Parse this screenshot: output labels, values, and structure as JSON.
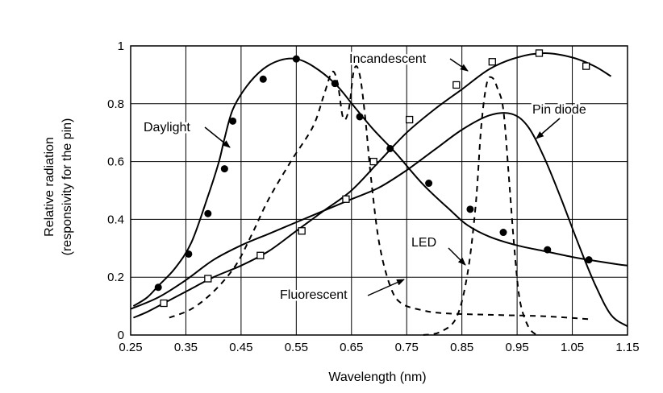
{
  "chart_data": {
    "type": "line",
    "xlabel": "Wavelength (nm)",
    "ylabel_line1": "Relative radiation",
    "ylabel_line2": "(responsivity for the pin)",
    "xlim": [
      0.25,
      1.15
    ],
    "ylim": [
      0,
      1
    ],
    "x_ticks": [
      "0.25",
      "0.35",
      "0.45",
      "0.55",
      "0.65",
      "0.75",
      "0.85",
      "0.95",
      "1.05",
      "1.15"
    ],
    "y_ticks": [
      "0",
      "0.2",
      "0.4",
      "0.6",
      "0.8",
      "1"
    ],
    "grid": true,
    "series": [
      {
        "name": "Daylight",
        "style": "solid",
        "marker": "filled-circle",
        "x": [
          0.255,
          0.28,
          0.3,
          0.33,
          0.36,
          0.39,
          0.41,
          0.42,
          0.435,
          0.46,
          0.49,
          0.52,
          0.55,
          0.58,
          0.62,
          0.655,
          0.69,
          0.73,
          0.78,
          0.83,
          0.86,
          0.9,
          0.95,
          1.0,
          1.05,
          1.08,
          1.13,
          1.15
        ],
        "y": [
          0.1,
          0.13,
          0.17,
          0.23,
          0.32,
          0.48,
          0.6,
          0.68,
          0.78,
          0.86,
          0.92,
          0.95,
          0.955,
          0.93,
          0.87,
          0.79,
          0.71,
          0.63,
          0.52,
          0.43,
          0.38,
          0.34,
          0.31,
          0.29,
          0.27,
          0.26,
          0.245,
          0.24
        ]
      },
      {
        "name": "Incandescent",
        "style": "solid",
        "marker": "open-square",
        "x": [
          0.255,
          0.28,
          0.31,
          0.35,
          0.4,
          0.45,
          0.5,
          0.55,
          0.6,
          0.65,
          0.7,
          0.75,
          0.8,
          0.85,
          0.9,
          0.95,
          1.0,
          1.05,
          1.09,
          1.12
        ],
        "y": [
          0.06,
          0.08,
          0.11,
          0.15,
          0.2,
          0.24,
          0.29,
          0.36,
          0.43,
          0.5,
          0.6,
          0.7,
          0.78,
          0.85,
          0.92,
          0.96,
          0.975,
          0.96,
          0.93,
          0.895
        ],
        "marker_x": [
          0.31,
          0.39,
          0.485,
          0.56,
          0.64,
          0.69,
          0.755,
          0.84,
          0.905,
          0.99,
          1.075
        ],
        "marker_y": [
          0.11,
          0.195,
          0.275,
          0.36,
          0.47,
          0.6,
          0.745,
          0.865,
          0.945,
          0.975,
          0.93
        ]
      },
      {
        "name": "Fluorescent",
        "style": "dashed",
        "marker": "none",
        "x": [
          0.32,
          0.36,
          0.4,
          0.44,
          0.47,
          0.5,
          0.54,
          0.58,
          0.6,
          0.615,
          0.625,
          0.635,
          0.645,
          0.655,
          0.665,
          0.675,
          0.685,
          0.7,
          0.72,
          0.74,
          0.78,
          0.82,
          0.9,
          1.0,
          1.08
        ],
        "y": [
          0.06,
          0.09,
          0.15,
          0.24,
          0.35,
          0.47,
          0.6,
          0.72,
          0.83,
          0.91,
          0.87,
          0.75,
          0.78,
          0.92,
          0.9,
          0.75,
          0.55,
          0.32,
          0.17,
          0.11,
          0.085,
          0.075,
          0.07,
          0.065,
          0.055
        ]
      },
      {
        "name": "LED",
        "style": "dashed",
        "marker": "none",
        "x": [
          0.78,
          0.81,
          0.84,
          0.86,
          0.875,
          0.885,
          0.895,
          0.905,
          0.915,
          0.925,
          0.935,
          0.945,
          0.955,
          0.97,
          0.985
        ],
        "y": [
          0.0,
          0.01,
          0.06,
          0.21,
          0.45,
          0.72,
          0.87,
          0.89,
          0.85,
          0.78,
          0.55,
          0.3,
          0.12,
          0.03,
          0.0
        ]
      },
      {
        "name": "Pin diode",
        "style": "solid",
        "marker": "none",
        "x": [
          0.25,
          0.3,
          0.35,
          0.4,
          0.45,
          0.5,
          0.55,
          0.6,
          0.65,
          0.7,
          0.75,
          0.8,
          0.85,
          0.9,
          0.94,
          0.97,
          1.0,
          1.03,
          1.06,
          1.09,
          1.12,
          1.15
        ],
        "y": [
          0.09,
          0.13,
          0.19,
          0.26,
          0.31,
          0.35,
          0.39,
          0.43,
          0.47,
          0.51,
          0.57,
          0.64,
          0.71,
          0.76,
          0.765,
          0.72,
          0.61,
          0.47,
          0.32,
          0.18,
          0.07,
          0.03
        ]
      }
    ],
    "annotations": [
      {
        "text": "Daylight",
        "series": "Daylight"
      },
      {
        "text": "Incandescent",
        "series": "Incandescent"
      },
      {
        "text": "Pin diode",
        "series": "Pin diode"
      },
      {
        "text": "LED",
        "series": "LED"
      },
      {
        "text": "Fluorescent",
        "series": "Fluorescent"
      }
    ]
  }
}
